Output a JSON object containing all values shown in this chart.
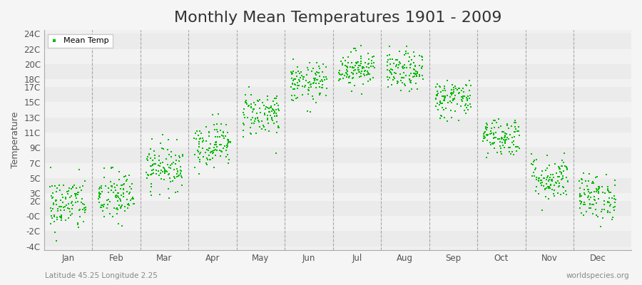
{
  "title": "Monthly Mean Temperatures 1901 - 2009",
  "ylabel": "Temperature",
  "subtitle": "Latitude 45.25 Longitude 2.25",
  "watermark": "worldspecies.org",
  "legend_label": "Mean Temp",
  "dot_color": "#00bb00",
  "background_color": "#f0f0f0",
  "plot_bg_color": "#f0f0f0",
  "yticks": [
    -4,
    -2,
    0,
    2,
    3,
    5,
    7,
    9,
    11,
    13,
    15,
    17,
    18,
    20,
    22,
    24
  ],
  "ytick_labels": [
    "-4C",
    "-2C",
    "-0C",
    "2C",
    "3C",
    "5C",
    "7C",
    "9C",
    "11C",
    "13C",
    "15C",
    "17C",
    "18C",
    "20C",
    "22C",
    "24C"
  ],
  "ylim": [
    -4.5,
    24.5
  ],
  "months": [
    "Jan",
    "Feb",
    "Mar",
    "Apr",
    "May",
    "Jun",
    "Jul",
    "Aug",
    "Sep",
    "Oct",
    "Nov",
    "Dec"
  ],
  "month_means": [
    1.5,
    2.5,
    6.5,
    9.5,
    13.5,
    17.5,
    19.5,
    19.0,
    15.5,
    10.5,
    5.0,
    2.5
  ],
  "month_stds": [
    1.8,
    1.8,
    1.5,
    1.5,
    1.5,
    1.3,
    1.2,
    1.3,
    1.3,
    1.3,
    1.5,
    1.5
  ],
  "n_years": 109,
  "title_fontsize": 16,
  "axis_label_fontsize": 9,
  "tick_fontsize": 8.5
}
